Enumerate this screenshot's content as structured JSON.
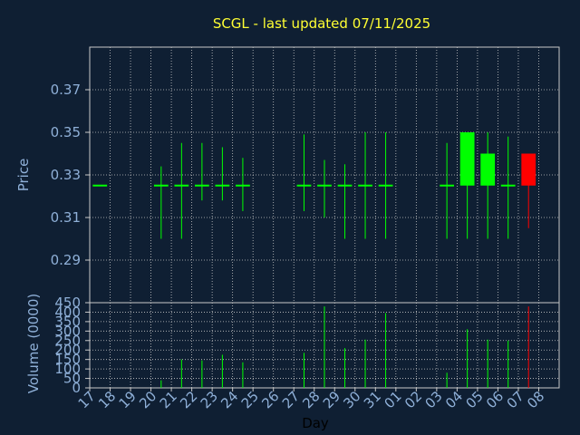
{
  "chart_data": {
    "type": "candlestick",
    "title": "SCGL - last updated 07/11/2025",
    "xlabel": "Day",
    "price_axis": {
      "ylabel": "Price",
      "ylim": [
        0.27,
        0.39
      ],
      "ticks": [
        "0.29",
        "0.31",
        "0.33",
        "0.35",
        "0.37"
      ]
    },
    "volume_axis": {
      "ylabel": "Volume (0000)",
      "ylim": [
        0,
        450
      ],
      "ticks": [
        "0",
        "50",
        "100",
        "150",
        "200",
        "250",
        "300",
        "350",
        "400",
        "450"
      ]
    },
    "days": [
      "17",
      "18",
      "19",
      "20",
      "21",
      "22",
      "23",
      "24",
      "25",
      "26",
      "27",
      "28",
      "29",
      "30",
      "31",
      "01",
      "02",
      "03",
      "04",
      "05",
      "06",
      "07",
      "08"
    ],
    "candles": [
      {
        "day": "17",
        "open": 0.325,
        "high": 0.325,
        "low": 0.325,
        "close": 0.325,
        "volume": 0
      },
      {
        "day": "20",
        "open": 0.325,
        "high": 0.334,
        "low": 0.3,
        "close": 0.325,
        "volume": 40
      },
      {
        "day": "21",
        "open": 0.325,
        "high": 0.345,
        "low": 0.3,
        "close": 0.325,
        "volume": 150
      },
      {
        "day": "22",
        "open": 0.325,
        "high": 0.345,
        "low": 0.318,
        "close": 0.325,
        "volume": 145
      },
      {
        "day": "23",
        "open": 0.325,
        "high": 0.343,
        "low": 0.318,
        "close": 0.325,
        "volume": 175
      },
      {
        "day": "24",
        "open": 0.325,
        "high": 0.338,
        "low": 0.313,
        "close": 0.325,
        "volume": 135
      },
      {
        "day": "27",
        "open": 0.325,
        "high": 0.349,
        "low": 0.313,
        "close": 0.325,
        "volume": 185
      },
      {
        "day": "28",
        "open": 0.325,
        "high": 0.337,
        "low": 0.31,
        "close": 0.325,
        "volume": 430
      },
      {
        "day": "29",
        "open": 0.325,
        "high": 0.335,
        "low": 0.3,
        "close": 0.325,
        "volume": 210
      },
      {
        "day": "30",
        "open": 0.325,
        "high": 0.35,
        "low": 0.3,
        "close": 0.325,
        "volume": 255
      },
      {
        "day": "31",
        "open": 0.325,
        "high": 0.35,
        "low": 0.3,
        "close": 0.325,
        "volume": 395
      },
      {
        "day": "03",
        "open": 0.325,
        "high": 0.345,
        "low": 0.3,
        "close": 0.325,
        "volume": 80
      },
      {
        "day": "04",
        "open": 0.325,
        "high": 0.35,
        "low": 0.3,
        "close": 0.35,
        "volume": 310
      },
      {
        "day": "05",
        "open": 0.325,
        "high": 0.35,
        "low": 0.3,
        "close": 0.34,
        "volume": 255
      },
      {
        "day": "06",
        "open": 0.325,
        "high": 0.348,
        "low": 0.3,
        "close": 0.325,
        "volume": 250
      },
      {
        "day": "07",
        "open": 0.34,
        "high": 0.34,
        "low": 0.305,
        "close": 0.325,
        "volume": 430
      }
    ],
    "grid": true,
    "colors": {
      "background": "#0f1f33",
      "grid": "#c8c8c8",
      "axis_text": "#8fb0d8",
      "title": "#ffff33",
      "up": "#00ff00",
      "down": "#ff0000"
    }
  }
}
